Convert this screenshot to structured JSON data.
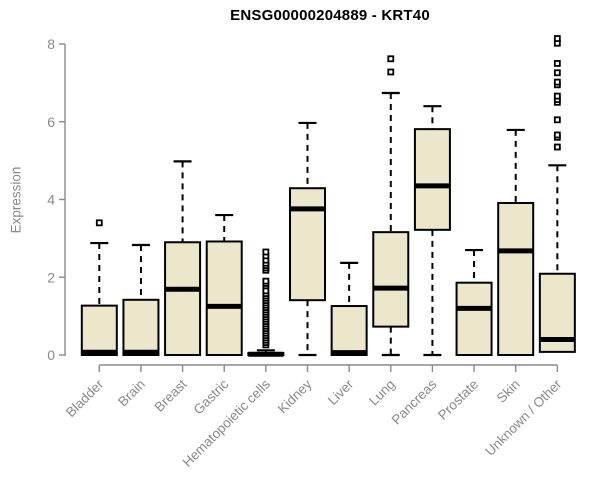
{
  "chart_data": {
    "type": "boxplot",
    "title": "ENSG00000204889 - KRT40",
    "ylabel": "Expression",
    "xlabel": "",
    "ylim": [
      0,
      8
    ],
    "yticks": [
      0,
      2,
      4,
      6,
      8
    ],
    "grid": false,
    "legend": "none",
    "colors": {
      "box_fill": "#ECE7CB",
      "box_stroke": "#000000",
      "median": "#000000",
      "whisker": "#000000",
      "outlier": "#000000",
      "axis": "#8a8a8a",
      "title": "#000000",
      "background": "#ffffff"
    },
    "categories": [
      "Bladder",
      "Brain",
      "Breast",
      "Gastric",
      "Hematopoietic cells",
      "Kidney",
      "Liver",
      "Lung",
      "Pancreas",
      "Prostate",
      "Skin",
      "Unknown / Other"
    ],
    "boxes": [
      {
        "category": "Bladder",
        "whisker_low": 0,
        "q1": 0,
        "median": 0.07,
        "q3": 1.27,
        "whisker_high": 2.88,
        "outliers": [
          3.4
        ]
      },
      {
        "category": "Brain",
        "whisker_low": 0,
        "q1": 0,
        "median": 0.07,
        "q3": 1.42,
        "whisker_high": 2.83,
        "outliers": []
      },
      {
        "category": "Breast",
        "whisker_low": 0,
        "q1": 0,
        "median": 1.69,
        "q3": 2.9,
        "whisker_high": 4.98,
        "outliers": []
      },
      {
        "category": "Gastric",
        "whisker_low": 0,
        "q1": 0,
        "median": 1.25,
        "q3": 2.92,
        "whisker_high": 3.6,
        "outliers": []
      },
      {
        "category": "Hematopoietic cells",
        "whisker_low": 0,
        "q1": 0,
        "median": 0.02,
        "q3": 0.05,
        "whisker_high": 0.12,
        "outliers": [
          0.26,
          0.32,
          0.38,
          0.44,
          0.5,
          0.56,
          0.62,
          0.68,
          0.74,
          0.8,
          0.86,
          0.92,
          0.98,
          1.04,
          1.1,
          1.16,
          1.22,
          1.28,
          1.34,
          1.4,
          1.46,
          1.52,
          1.58,
          1.65,
          1.78,
          1.84,
          1.9,
          2.18,
          2.24,
          2.3,
          2.36,
          2.44,
          2.55,
          2.65
        ]
      },
      {
        "category": "Kidney",
        "whisker_low": 0,
        "q1": 1.41,
        "median": 3.76,
        "q3": 4.29,
        "whisker_high": 5.97,
        "outliers": []
      },
      {
        "category": "Liver",
        "whisker_low": 0,
        "q1": 0,
        "median": 0.06,
        "q3": 1.26,
        "whisker_high": 2.37,
        "outliers": []
      },
      {
        "category": "Lung",
        "whisker_low": 0,
        "q1": 0.73,
        "median": 1.72,
        "q3": 3.16,
        "whisker_high": 6.74,
        "outliers": [
          7.28,
          7.62
        ]
      },
      {
        "category": "Pancreas",
        "whisker_low": 0,
        "q1": 3.22,
        "median": 4.35,
        "q3": 5.81,
        "whisker_high": 6.4,
        "outliers": []
      },
      {
        "category": "Prostate",
        "whisker_low": 0,
        "q1": 0,
        "median": 1.2,
        "q3": 1.86,
        "whisker_high": 2.7,
        "outliers": []
      },
      {
        "category": "Skin",
        "whisker_low": 0,
        "q1": 0,
        "median": 2.68,
        "q3": 3.91,
        "whisker_high": 5.79,
        "outliers": []
      },
      {
        "category": "Unknown / Other",
        "whisker_low": 0.08,
        "q1": 0.08,
        "median": 0.4,
        "q3": 2.09,
        "whisker_high": 4.88,
        "outliers": [
          5.35,
          5.6,
          5.66,
          6.05,
          6.5,
          6.57,
          6.66,
          6.95,
          7.02,
          7.26,
          7.5,
          8.02,
          8.14
        ]
      }
    ]
  }
}
